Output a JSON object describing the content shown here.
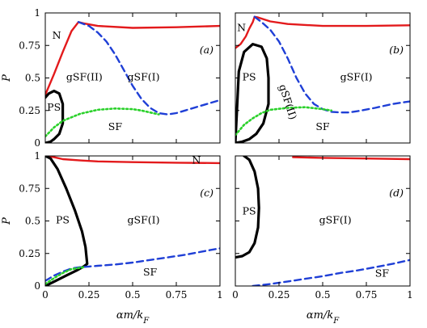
{
  "chart_data": [
    {
      "type": "line",
      "panel_label": "(a)",
      "xlim": [
        0,
        1
      ],
      "ylim": [
        0,
        1
      ],
      "x_ticks": [
        0,
        0.25,
        0.5,
        0.75,
        1
      ],
      "y_ticks": [
        0,
        0.25,
        0.5,
        0.75,
        1
      ],
      "x_tick_labels": [
        "0",
        "0.25",
        "0.5",
        "0.75",
        "1"
      ],
      "y_tick_labels": [
        "0",
        "0.25",
        "0.5",
        "0.75",
        "1"
      ],
      "ylabel": "P",
      "regions": [
        {
          "text": "N",
          "x": 0.04,
          "y": 0.8
        },
        {
          "text": "gSF(II)",
          "x": 0.12,
          "y": 0.48
        },
        {
          "text": "gSF(I)",
          "x": 0.47,
          "y": 0.48
        },
        {
          "text": "PS",
          "x": 0.01,
          "y": 0.25
        },
        {
          "text": "SF",
          "x": 0.36,
          "y": 0.1
        }
      ],
      "series": [
        {
          "style": "red-solid",
          "color": "#e31a1c",
          "x": [
            0,
            0.05,
            0.1,
            0.15,
            0.19,
            0.22,
            0.3,
            0.5,
            0.75,
            1
          ],
          "y": [
            0.37,
            0.53,
            0.7,
            0.86,
            0.93,
            0.92,
            0.9,
            0.885,
            0.89,
            0.9
          ]
        },
        {
          "style": "blue-dashed",
          "color": "#1f3fd6",
          "x": [
            0.19,
            0.25,
            0.3,
            0.35,
            0.4,
            0.45,
            0.5,
            0.55,
            0.6,
            0.65,
            0.7,
            0.75,
            0.8,
            0.9,
            1
          ],
          "y": [
            0.93,
            0.9,
            0.85,
            0.78,
            0.68,
            0.56,
            0.44,
            0.34,
            0.27,
            0.23,
            0.22,
            0.23,
            0.25,
            0.29,
            0.33
          ]
        },
        {
          "style": "black-solid",
          "color": "#000000",
          "x": [
            0,
            0.02,
            0.05,
            0.08,
            0.1,
            0.1,
            0.08,
            0.05,
            0.03,
            0
          ],
          "y": [
            0.35,
            0.38,
            0.4,
            0.38,
            0.3,
            0.15,
            0.07,
            0.03,
            0.01,
            0
          ]
        },
        {
          "style": "green-dotted",
          "color": "#2bd12b",
          "x": [
            0,
            0.05,
            0.1,
            0.2,
            0.3,
            0.4,
            0.5,
            0.55,
            0.6,
            0.65
          ],
          "y": [
            0.05,
            0.12,
            0.17,
            0.225,
            0.255,
            0.265,
            0.26,
            0.25,
            0.235,
            0.22
          ]
        }
      ]
    },
    {
      "type": "line",
      "panel_label": "(b)",
      "xlim": [
        0,
        1
      ],
      "ylim": [
        0,
        1
      ],
      "x_ticks": [
        0,
        0.25,
        0.5,
        0.75,
        1
      ],
      "y_ticks": [
        0,
        0.25,
        0.5,
        0.75,
        1
      ],
      "x_tick_labels": [
        "0",
        "0.25",
        "0.5",
        "0.75",
        "1"
      ],
      "y_tick_labels": [
        "0",
        "0.25",
        "0.5",
        "0.75",
        "1"
      ],
      "ylabel": "",
      "regions": [
        {
          "text": "N",
          "x": 0.01,
          "y": 0.86
        },
        {
          "text": "PS",
          "x": 0.04,
          "y": 0.48
        },
        {
          "text": "gSF(I)",
          "x": 0.6,
          "y": 0.48
        },
        {
          "text": "SF",
          "x": 0.46,
          "y": 0.1
        }
      ],
      "rotated_label": {
        "text": "gSF(II)",
        "x": 0.25,
        "y": 0.44,
        "angle": 72
      },
      "series": [
        {
          "style": "red-solid",
          "color": "#e31a1c",
          "x": [
            0,
            0.03,
            0.06,
            0.08,
            0.1,
            0.11,
            0.13,
            0.2,
            0.3,
            0.5,
            0.75,
            1
          ],
          "y": [
            0.73,
            0.76,
            0.82,
            0.88,
            0.93,
            0.97,
            0.965,
            0.935,
            0.915,
            0.9,
            0.9,
            0.905
          ]
        },
        {
          "style": "blue-dashed",
          "color": "#1f3fd6",
          "x": [
            0.11,
            0.15,
            0.2,
            0.25,
            0.3,
            0.35,
            0.4,
            0.45,
            0.5,
            0.55,
            0.6,
            0.65,
            0.7,
            0.8,
            0.9,
            1
          ],
          "y": [
            0.97,
            0.93,
            0.87,
            0.78,
            0.65,
            0.5,
            0.38,
            0.3,
            0.26,
            0.24,
            0.235,
            0.235,
            0.245,
            0.27,
            0.3,
            0.32
          ]
        },
        {
          "style": "black-solid",
          "color": "#000000",
          "x": [
            0,
            0.02,
            0.05,
            0.1,
            0.15,
            0.18,
            0.19,
            0.19,
            0.16,
            0.12,
            0.08,
            0.04,
            0
          ],
          "y": [
            0,
            0.55,
            0.7,
            0.76,
            0.74,
            0.65,
            0.5,
            0.3,
            0.15,
            0.07,
            0.03,
            0.01,
            0
          ]
        },
        {
          "style": "green-dotted",
          "color": "#2bd12b",
          "x": [
            0,
            0.05,
            0.1,
            0.15,
            0.2,
            0.3,
            0.4,
            0.5,
            0.55
          ],
          "y": [
            0.06,
            0.14,
            0.19,
            0.23,
            0.255,
            0.27,
            0.275,
            0.26,
            0.25
          ]
        }
      ]
    },
    {
      "type": "line",
      "panel_label": "(c)",
      "xlim": [
        0,
        1
      ],
      "ylim": [
        0,
        1
      ],
      "x_ticks": [
        0,
        0.25,
        0.5,
        0.75,
        1
      ],
      "y_ticks": [
        0,
        0.25,
        0.5,
        0.75,
        1
      ],
      "x_tick_labels": [
        "0",
        "0.25",
        "0.5",
        "0.75",
        "1"
      ],
      "y_tick_labels": [
        "0",
        "0.25",
        "0.5",
        "0.75",
        "1"
      ],
      "xlabel": "αm/k_F",
      "ylabel": "P",
      "regions": [
        {
          "text": "N",
          "x": 0.84,
          "y": 0.94
        },
        {
          "text": "PS",
          "x": 0.06,
          "y": 0.48
        },
        {
          "text": "gSF(I)",
          "x": 0.47,
          "y": 0.48
        },
        {
          "text": "SF",
          "x": 0.56,
          "y": 0.08
        }
      ],
      "series": [
        {
          "style": "red-solid",
          "color": "#e31a1c",
          "x": [
            0,
            0.05,
            0.1,
            0.2,
            0.3,
            0.5,
            0.75,
            1
          ],
          "y": [
            1,
            0.99,
            0.975,
            0.965,
            0.958,
            0.952,
            0.948,
            0.945
          ]
        },
        {
          "style": "black-solid",
          "color": "#000000",
          "x": [
            0,
            0.03,
            0.07,
            0.12,
            0.17,
            0.21,
            0.23,
            0.24,
            0.22,
            0.18,
            0.12,
            0.06,
            0
          ],
          "y": [
            1,
            0.98,
            0.9,
            0.75,
            0.58,
            0.42,
            0.3,
            0.17,
            0.15,
            0.12,
            0.08,
            0.04,
            0
          ]
        },
        {
          "style": "blue-dashed",
          "color": "#1f3fd6",
          "x": [
            0,
            0.05,
            0.1,
            0.15,
            0.2,
            0.25,
            0.3,
            0.4,
            0.5,
            0.6,
            0.7,
            0.8,
            0.9,
            1
          ],
          "y": [
            0.04,
            0.08,
            0.11,
            0.135,
            0.145,
            0.15,
            0.155,
            0.165,
            0.18,
            0.2,
            0.22,
            0.24,
            0.265,
            0.29
          ]
        },
        {
          "style": "green-dotted",
          "color": "#2bd12b",
          "x": [
            0,
            0.05,
            0.1,
            0.15,
            0.2,
            0.22
          ],
          "y": [
            0.015,
            0.06,
            0.1,
            0.13,
            0.14,
            0.145
          ]
        }
      ]
    },
    {
      "type": "line",
      "panel_label": "(d)",
      "xlim": [
        0,
        1
      ],
      "ylim": [
        0,
        1
      ],
      "x_ticks": [
        0,
        0.25,
        0.5,
        0.75,
        1
      ],
      "y_ticks": [
        0,
        0.25,
        0.5,
        0.75,
        1
      ],
      "x_tick_labels": [
        "0",
        "0.25",
        "0.5",
        "0.75",
        "1"
      ],
      "y_tick_labels": [
        "0",
        "0.25",
        "0.5",
        "0.75",
        "1"
      ],
      "xlabel": "αm/k_F",
      "ylabel": "",
      "regions": [
        {
          "text": "PS",
          "x": 0.04,
          "y": 0.55
        },
        {
          "text": "gSF(I)",
          "x": 0.48,
          "y": 0.48
        },
        {
          "text": "SF",
          "x": 0.8,
          "y": 0.07
        }
      ],
      "series": [
        {
          "style": "red-solid",
          "color": "#e31a1c",
          "x": [
            0.33,
            0.5,
            0.75,
            1
          ],
          "y": [
            0.99,
            0.985,
            0.98,
            0.975
          ]
        },
        {
          "style": "black-solid",
          "color": "#000000",
          "x": [
            0.05,
            0.08,
            0.11,
            0.13,
            0.135,
            0.13,
            0.11,
            0.08,
            0.04,
            0
          ],
          "y": [
            1,
            0.97,
            0.88,
            0.75,
            0.6,
            0.45,
            0.33,
            0.26,
            0.23,
            0.22
          ]
        },
        {
          "style": "blue-dashed",
          "color": "#1f3fd6",
          "x": [
            0.1,
            0.2,
            0.3,
            0.4,
            0.5,
            0.6,
            0.7,
            0.8,
            0.9,
            1
          ],
          "y": [
            0,
            0.015,
            0.035,
            0.055,
            0.075,
            0.1,
            0.12,
            0.145,
            0.17,
            0.2
          ]
        }
      ]
    }
  ]
}
